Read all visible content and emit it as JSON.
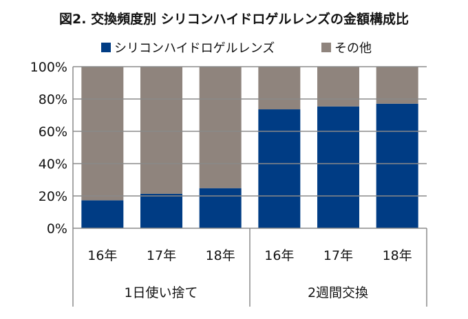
{
  "chart_data": {
    "type": "bar",
    "stacked": true,
    "title": "図2. 交換頻度別 シリコンハイドロゲルレンズの金額構成比",
    "categories": [
      "16年",
      "17年",
      "18年",
      "16年",
      "17年",
      "18年"
    ],
    "groups": [
      {
        "label": "1日使い捨て",
        "count": 3
      },
      {
        "label": "2週間交換",
        "count": 3
      }
    ],
    "series": [
      {
        "name": "シリコンハイドロゲルレンズ",
        "color": "#003c84",
        "values": [
          17.3,
          21.3,
          24.8,
          73.6,
          75.4,
          77.1
        ]
      },
      {
        "name": "その他",
        "color": "#8f847d",
        "values": [
          82.7,
          78.7,
          75.2,
          26.4,
          24.6,
          22.9
        ]
      }
    ],
    "yticks": [
      "0%",
      "20%",
      "40%",
      "60%",
      "80%",
      "100%"
    ],
    "ylim": [
      0,
      100
    ],
    "grid": true,
    "legend": "top-center"
  }
}
